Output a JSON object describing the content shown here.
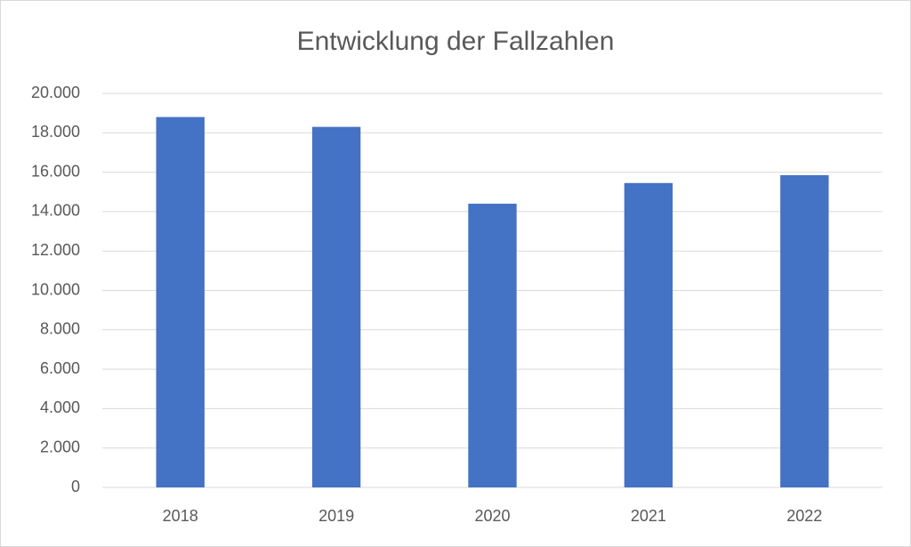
{
  "chart_data": {
    "type": "bar",
    "title": "Entwicklung der Fallzahlen",
    "categories": [
      "2018",
      "2019",
      "2020",
      "2021",
      "2022"
    ],
    "values": [
      18800,
      18300,
      14400,
      15450,
      15850
    ],
    "color": "#4472c4",
    "ylim": [
      0,
      20000
    ],
    "yticks": [
      0,
      {
        "value": 2000,
        "label": "2.000"
      },
      {
        "value": 4000,
        "label": "4.000"
      },
      {
        "value": 6000,
        "label": "6.000"
      },
      {
        "value": 8000,
        "label": "8.000"
      },
      {
        "value": 10000,
        "label": "10.000"
      },
      {
        "value": 12000,
        "label": "12.000"
      },
      {
        "value": 14000,
        "label": "14.000"
      },
      {
        "value": 16000,
        "label": "16.000"
      },
      {
        "value": 18000,
        "label": "18.000"
      },
      {
        "value": 20000,
        "label": "20.000"
      }
    ],
    "grid": true
  }
}
